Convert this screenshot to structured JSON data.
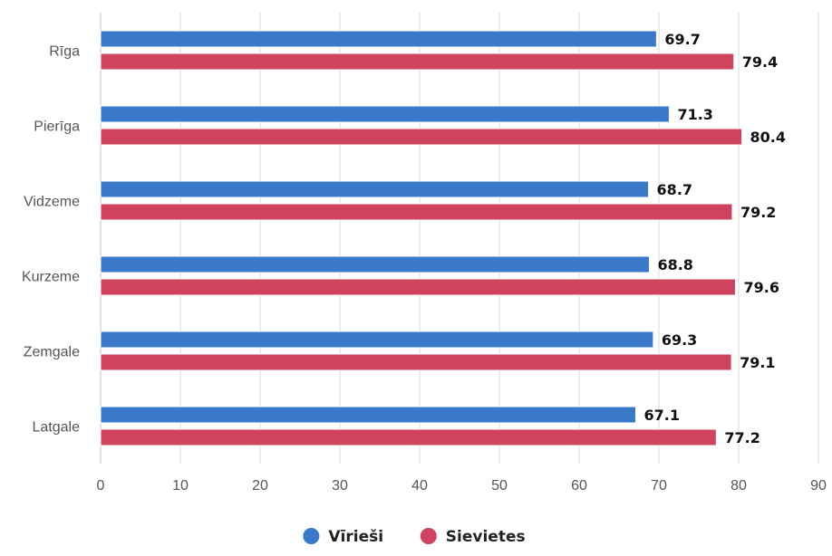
{
  "chart_data": {
    "type": "bar",
    "orientation": "horizontal",
    "categories": [
      "Rīga",
      "Pierīga",
      "Vidzeme",
      "Kurzeme",
      "Zemgale",
      "Latgale"
    ],
    "series": [
      {
        "name": "Vīrieši",
        "color": "#3a78c9",
        "values": [
          69.7,
          71.3,
          68.7,
          68.8,
          69.3,
          67.1
        ]
      },
      {
        "name": "Sievietes",
        "color": "#d0435f",
        "values": [
          79.4,
          80.4,
          79.2,
          79.6,
          79.1,
          77.2
        ]
      }
    ],
    "xlim": [
      0,
      90
    ],
    "xticks": [
      0,
      10,
      20,
      30,
      40,
      50,
      60,
      70,
      80,
      90
    ],
    "grid": true,
    "legend": "bottom-center",
    "data_labels": true
  }
}
